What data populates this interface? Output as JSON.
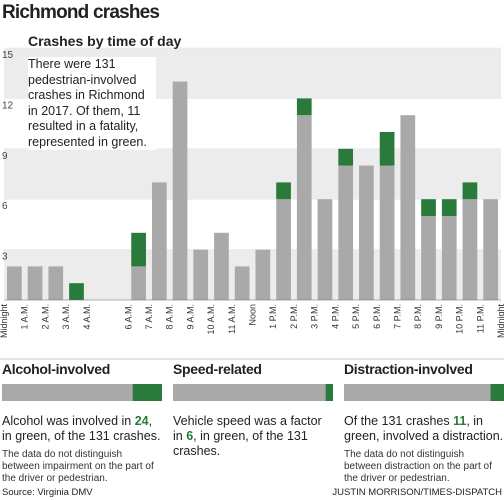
{
  "title": "Richmond crashes",
  "chart_data": {
    "type": "stacked-bar",
    "title": "Crashes by time of day",
    "annotation": "There were 131 pedestrian-involved crashes in Richmond in 2017. Of them, 11 resulted in a fatality, represented in green.",
    "x_labels": [
      "Midnight",
      "1 A.M.",
      "2 A.M.",
      "3 A.M.",
      "4 A.M.",
      null,
      "6 A.M.",
      "7 A.M.",
      "8 A.M.",
      "9 A.M.",
      "10 A.M.",
      "11 A.M.",
      "Noon",
      "1 P.M.",
      "2 P.M.",
      "3 P.M.",
      "4 P.M.",
      "5 P.M.",
      "6 P.M.",
      "7 P.M.",
      "8 P.M.",
      "9 P.M.",
      "10 P.M.",
      "11 P.M.",
      "Midnight"
    ],
    "series": [
      {
        "name": "Non-fatal",
        "color": "#a9a9a9",
        "values": [
          2,
          2,
          2,
          0,
          0,
          0,
          2,
          7,
          13,
          3,
          4,
          2,
          3,
          6,
          11,
          6,
          8,
          8,
          8,
          11,
          5,
          5,
          6,
          6
        ]
      },
      {
        "name": "Fatal",
        "color": "#2a7a3b",
        "values": [
          0,
          0,
          0,
          1,
          0,
          0,
          2,
          0,
          0,
          0,
          0,
          0,
          0,
          1,
          1,
          0,
          1,
          0,
          2,
          0,
          1,
          1,
          1,
          0
        ]
      }
    ],
    "ylim": [
      0,
      15
    ],
    "yticks": [
      3,
      6,
      9,
      12,
      15
    ],
    "band_color": "#ececec"
  },
  "panels": [
    {
      "title": "Alcohol-involved",
      "value": 24,
      "total": 131,
      "text_before": "Alcohol was involved in",
      "text_after": ", in green, of the 131 crashes.",
      "note": "The data do not distinguish between impairment on the part of the driver or pedestrian."
    },
    {
      "title": "Speed-related",
      "value": 6,
      "total": 131,
      "text_before": "Vehicle speed was a factor in",
      "text_after": ", in green, of the 131 crashes.",
      "note": null
    },
    {
      "title": "Distraction-involved",
      "value": 11,
      "total": 131,
      "text_before": "Of the 131 crashes",
      "text_after": ", in green, involved a distraction.",
      "note": "The data do not distinguish between distraction on the part of the driver or pedestrian."
    }
  ],
  "source": "Source: Virginia DMV",
  "credit": "JUSTIN MORRISON/TIMES-DISPATCH"
}
